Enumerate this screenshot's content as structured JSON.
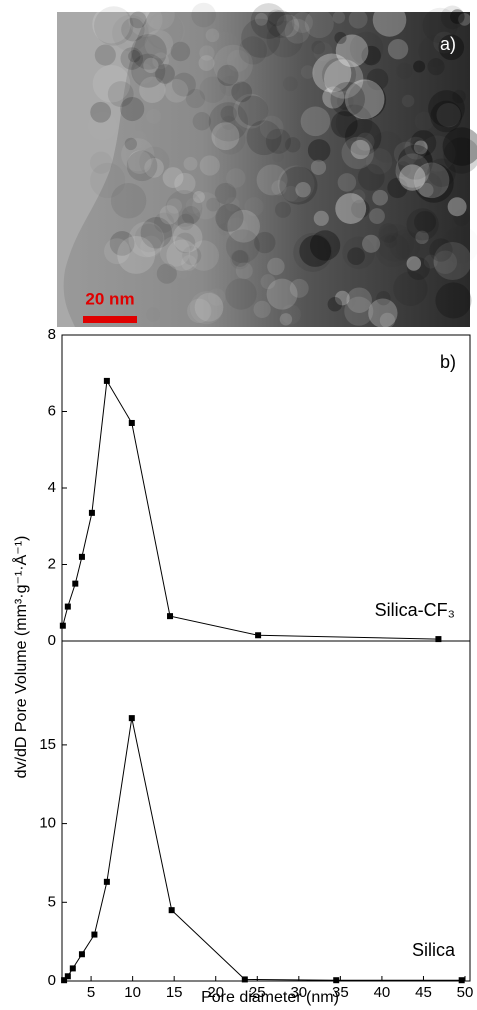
{
  "image": {
    "panel_label": "a)",
    "scale_bar": "20 nm"
  },
  "x_label": "Pore diameter (nm)",
  "y_label": "dv/dD Pore Volume (mm³·g⁻¹·Å⁻¹)",
  "chart_data": [
    {
      "type": "line",
      "panel_label": "b)",
      "x": [
        1.6,
        2.2,
        3.1,
        3.9,
        5.1,
        6.9,
        9.9,
        14.5,
        25.1,
        46.8
      ],
      "series": [
        {
          "name": "Silica-CF₃",
          "color": "#000000",
          "values": [
            0.4,
            0.9,
            1.5,
            2.2,
            3.35,
            6.8,
            5.7,
            0.65,
            0.15,
            0.05
          ]
        }
      ],
      "xlim": [
        1.5,
        50.6
      ],
      "ylim": [
        0,
        8
      ],
      "yticks": [
        0,
        2,
        4,
        6,
        8
      ]
    },
    {
      "type": "line",
      "x": [
        1.75,
        2.2,
        2.8,
        3.9,
        5.4,
        6.9,
        9.9,
        14.7,
        23.5,
        34.5,
        49.6
      ],
      "series": [
        {
          "name": "Silica",
          "color": "#000000",
          "values": [
            0.05,
            0.3,
            0.8,
            1.7,
            2.95,
            6.3,
            16.7,
            4.5,
            0.1,
            0.05,
            0.05
          ]
        }
      ],
      "xlim": [
        1.5,
        50.6
      ],
      "xticks": [
        5,
        10,
        15,
        20,
        25,
        30,
        35,
        40,
        45,
        50
      ],
      "ylim": [
        0,
        21.6
      ],
      "yticks": [
        0,
        5,
        10,
        15
      ]
    }
  ]
}
